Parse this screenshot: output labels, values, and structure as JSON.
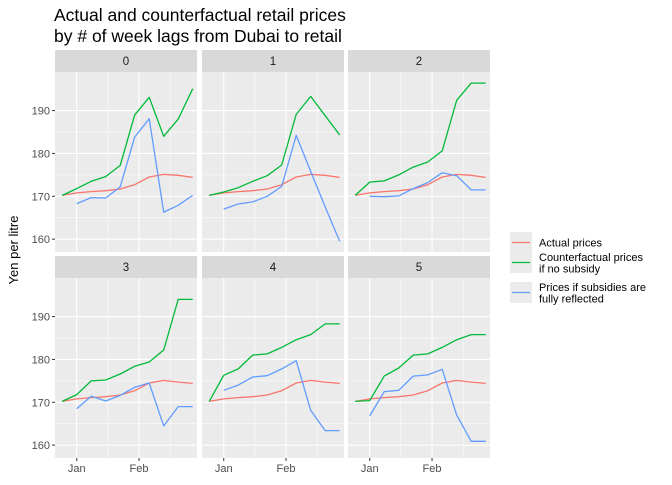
{
  "chart_data": {
    "type": "line",
    "title": "Actual and counterfactual retail prices\nby # of week lags from Dubai to retail",
    "ylabel": "Yen per litre",
    "xlabel": "",
    "ylim": [
      157,
      199
    ],
    "yticks": [
      160,
      170,
      180,
      190
    ],
    "x_ticks": [
      {
        "label": "Jan",
        "week": 1
      },
      {
        "label": "Feb",
        "week": 5.3
      }
    ],
    "xlim": [
      -0.5,
      9.3
    ],
    "grid": true,
    "legend_position": "right",
    "colors": {
      "actual": "#F8766D",
      "counterfactual": "#00BA38",
      "subsidy": "#619CFF",
      "panel_bg": "#EBEBEB",
      "strip_bg": "#D9D9D9",
      "grid": "#FFFFFF"
    },
    "legend": [
      {
        "key": "actual",
        "label_lines": [
          "Actual prices"
        ]
      },
      {
        "key": "counterfactual",
        "label_lines": [
          "Counterfactual prices",
          "if no subsidy"
        ]
      },
      {
        "key": "subsidy",
        "label_lines": [
          "Prices if subsidies are",
          "fully reflected"
        ]
      }
    ],
    "panels": [
      {
        "label": "0",
        "series": {
          "actual": {
            "x": [
              0,
              1,
              2,
              3,
              4,
              5,
              6,
              7,
              8,
              9
            ],
            "y": [
              170.2,
              170.8,
              171.1,
              171.3,
              171.7,
              172.7,
              174.5,
              175.1,
              174.9,
              174.4
            ]
          },
          "counterfactual": {
            "x": [
              0,
              1,
              2,
              3,
              4,
              5,
              6,
              7,
              8,
              9
            ],
            "y": [
              170.2,
              171.8,
              173.5,
              174.6,
              177.2,
              189.0,
              193.1,
              184.0,
              188.0,
              195.1
            ]
          },
          "subsidy": {
            "x": [
              1,
              2,
              3,
              4,
              5,
              6,
              7,
              8,
              9
            ],
            "y": [
              168.3,
              169.7,
              169.6,
              172.2,
              183.8,
              188.1,
              166.3,
              167.9,
              170.2
            ]
          }
        }
      },
      {
        "label": "1",
        "series": {
          "actual": {
            "x": [
              0,
              1,
              2,
              3,
              4,
              5,
              6,
              7,
              8,
              9
            ],
            "y": [
              170.2,
              170.8,
              171.1,
              171.3,
              171.7,
              172.7,
              174.5,
              175.1,
              174.9,
              174.4
            ]
          },
          "counterfactual": {
            "x": [
              0,
              1,
              2,
              3,
              4,
              5,
              6,
              7,
              8,
              9
            ],
            "y": [
              170.2,
              171.0,
              172.0,
              173.5,
              174.8,
              177.3,
              189.1,
              193.3,
              188.8,
              184.3
            ]
          },
          "subsidy": {
            "x": [
              1,
              2,
              3,
              4,
              5,
              6,
              7,
              8,
              9
            ],
            "y": [
              167.0,
              168.2,
              168.7,
              170.0,
              172.3,
              184.2,
              175.8,
              167.5,
              159.5
            ]
          }
        }
      },
      {
        "label": "2",
        "series": {
          "actual": {
            "x": [
              0,
              1,
              2,
              3,
              4,
              5,
              6,
              7,
              8,
              9
            ],
            "y": [
              170.2,
              170.8,
              171.1,
              171.3,
              171.7,
              172.7,
              174.5,
              175.1,
              174.9,
              174.4
            ]
          },
          "counterfactual": {
            "x": [
              0,
              1,
              2,
              3,
              4,
              5,
              6,
              7,
              8,
              9
            ],
            "y": [
              170.2,
              173.3,
              173.6,
              175.0,
              176.8,
              178.0,
              180.6,
              192.4,
              196.4,
              196.4
            ]
          },
          "subsidy": {
            "x": [
              1,
              2,
              3,
              4,
              5,
              6,
              7,
              8,
              9
            ],
            "y": [
              170.0,
              169.9,
              170.1,
              171.8,
              173.2,
              175.5,
              174.8,
              171.5,
              171.5
            ]
          }
        }
      },
      {
        "label": "3",
        "series": {
          "actual": {
            "x": [
              0,
              1,
              2,
              3,
              4,
              5,
              6,
              7,
              8,
              9
            ],
            "y": [
              170.2,
              170.8,
              171.1,
              171.3,
              171.7,
              172.7,
              174.5,
              175.1,
              174.7,
              174.4
            ]
          },
          "counterfactual": {
            "x": [
              0,
              1,
              2,
              3,
              4,
              5,
              6,
              7,
              8,
              9
            ],
            "y": [
              170.2,
              171.8,
              175.0,
              175.2,
              176.6,
              178.4,
              179.4,
              182.2,
              194.0,
              194.0
            ]
          },
          "subsidy": {
            "x": [
              1,
              2,
              3,
              4,
              5,
              6,
              7,
              8,
              9
            ],
            "y": [
              168.5,
              171.4,
              170.3,
              171.6,
              173.5,
              174.5,
              164.5,
              169.0,
              169.0
            ]
          }
        }
      },
      {
        "label": "4",
        "series": {
          "actual": {
            "x": [
              0,
              1,
              2,
              3,
              4,
              5,
              6,
              7,
              8,
              9
            ],
            "y": [
              170.2,
              170.8,
              171.1,
              171.3,
              171.7,
              172.7,
              174.5,
              175.1,
              174.7,
              174.4
            ]
          },
          "counterfactual": {
            "x": [
              0,
              1,
              2,
              3,
              4,
              5,
              6,
              7,
              8,
              9
            ],
            "y": [
              170.2,
              176.3,
              177.8,
              181.0,
              181.3,
              182.8,
              184.6,
              185.8,
              188.3,
              188.3
            ]
          },
          "subsidy": {
            "x": [
              1,
              2,
              3,
              4,
              5,
              6,
              7,
              8,
              9
            ],
            "y": [
              172.8,
              174.0,
              175.9,
              176.2,
              177.8,
              179.7,
              168.1,
              163.4,
              163.4
            ]
          }
        }
      },
      {
        "label": "5",
        "series": {
          "actual": {
            "x": [
              0,
              1,
              2,
              3,
              4,
              5,
              6,
              7,
              8,
              9
            ],
            "y": [
              170.2,
              170.8,
              171.1,
              171.3,
              171.7,
              172.7,
              174.5,
              175.1,
              174.7,
              174.4
            ]
          },
          "counterfactual": {
            "x": [
              0,
              1,
              2,
              3,
              4,
              5,
              6,
              7,
              8,
              9
            ],
            "y": [
              170.2,
              170.4,
              176.1,
              178.0,
              181.0,
              181.3,
              182.8,
              184.6,
              185.8,
              185.8
            ]
          },
          "subsidy": {
            "x": [
              1,
              2,
              3,
              4,
              5,
              6,
              7,
              8,
              9
            ],
            "y": [
              166.8,
              172.5,
              172.8,
              176.1,
              176.4,
              177.7,
              167.0,
              160.9,
              160.9
            ]
          }
        }
      }
    ]
  }
}
